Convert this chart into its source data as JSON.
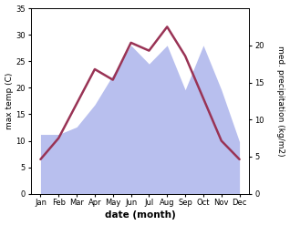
{
  "months": [
    "Jan",
    "Feb",
    "Mar",
    "Apr",
    "May",
    "Jun",
    "Jul",
    "Aug",
    "Sep",
    "Oct",
    "Nov",
    "Dec"
  ],
  "temp": [
    6.5,
    10.5,
    17.0,
    23.5,
    21.5,
    28.5,
    27.0,
    31.5,
    26.0,
    18.0,
    10.0,
    6.5
  ],
  "precip": [
    8.0,
    8.0,
    9.0,
    12.0,
    16.0,
    20.0,
    17.5,
    20.0,
    14.0,
    20.0,
    14.0,
    7.0
  ],
  "temp_color": "#993355",
  "precip_color": "#b8bfee",
  "ylim_left": [
    0,
    35
  ],
  "ylim_right": [
    0,
    25
  ],
  "yticks_left": [
    0,
    5,
    10,
    15,
    20,
    25,
    30,
    35
  ],
  "yticks_right": [
    0,
    5,
    10,
    15,
    20
  ],
  "xlabel": "date (month)",
  "ylabel_left": "max temp (C)",
  "ylabel_right": "med. precipitation (kg/m2)",
  "bg_color": "#ffffff",
  "line_width": 1.8,
  "label_fontsize": 6.5,
  "tick_fontsize": 6
}
